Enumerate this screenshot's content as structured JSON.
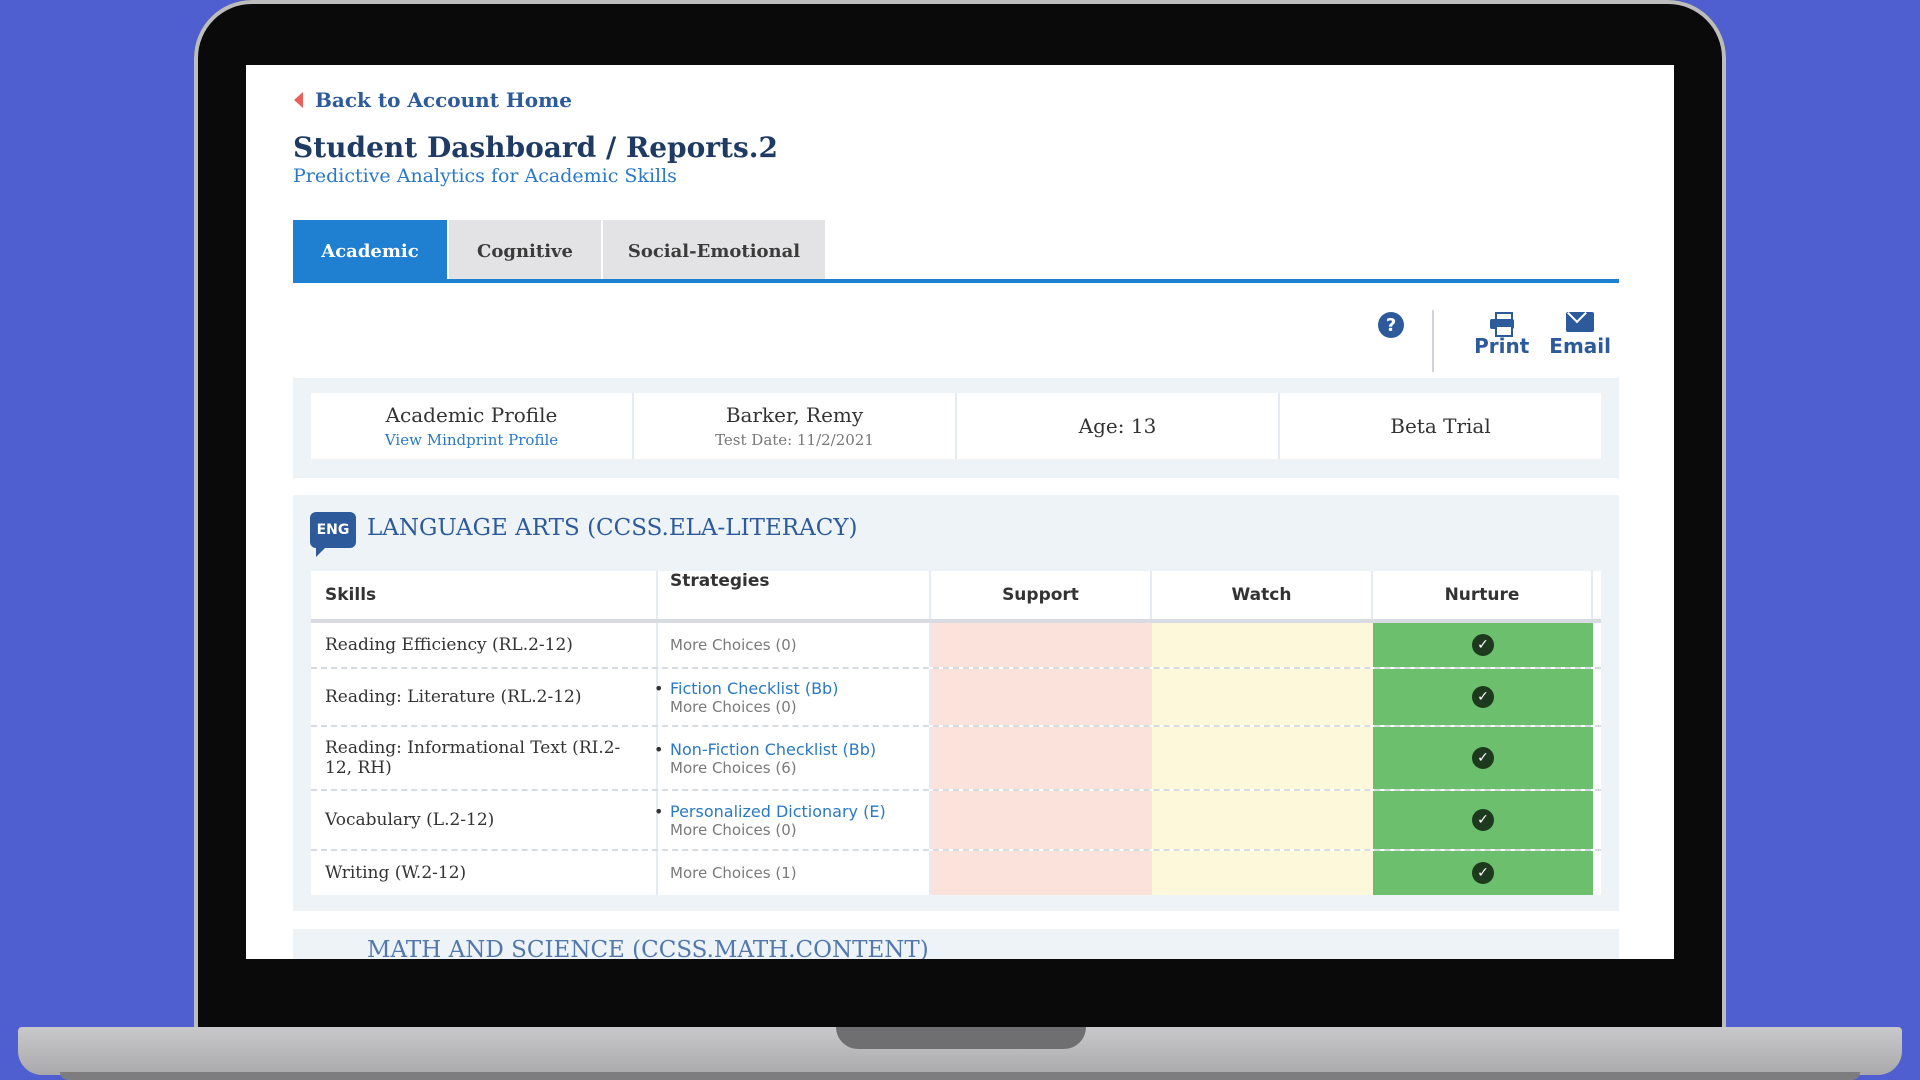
{
  "nav": {
    "back_label": "Back to Account Home"
  },
  "page": {
    "title": "Student Dashboard / Reports.2",
    "subtitle": "Predictive Analytics for Academic Skills"
  },
  "tabs": [
    {
      "label": "Academic",
      "active": true
    },
    {
      "label": "Cognitive",
      "active": false
    },
    {
      "label": "Social-Emotional",
      "active": false
    }
  ],
  "toolbar": {
    "help_icon": "question-circle-icon",
    "print_label": "Print",
    "email_label": "Email"
  },
  "profile": {
    "title": "Academic Profile",
    "link": "View Mindprint Profile",
    "student_name": "Barker, Remy",
    "test_date": "Test Date: 11/2/2021",
    "age": "Age: 13",
    "program": "Beta Trial"
  },
  "section": {
    "badge": "ENG",
    "title": "LANGUAGE ARTS (CCSS.ELA-LITERACY)",
    "next_title": "MATH AND SCIENCE (CCSS.MATH.CONTENT)",
    "columns": [
      "Skills",
      "Strategies",
      "Support",
      "Watch",
      "Nurture"
    ],
    "rows": [
      {
        "skill": "Reading Efficiency (RL.2-12)",
        "primary": "",
        "more": "More Choices (0)",
        "level": "Nurture"
      },
      {
        "skill": "Reading: Literature (RL.2-12)",
        "primary": "Fiction Checklist (Bb)",
        "more": "More Choices (0)",
        "level": "Nurture"
      },
      {
        "skill": "Reading: Informational Text (RI.2-12, RH)",
        "primary": "Non-Fiction Checklist (Bb)",
        "more": "More Choices (6)",
        "level": "Nurture"
      },
      {
        "skill": "Vocabulary (L.2-12)",
        "primary": "Personalized Dictionary (E)",
        "more": "More Choices (0)",
        "level": "Nurture"
      },
      {
        "skill": "Writing (W.2-12)",
        "primary": "",
        "more": "More Choices (1)",
        "level": "Nurture"
      }
    ]
  },
  "colors": {
    "accent": "#1f7fd1",
    "support": "#fbe3dc",
    "watch": "#fdf8d9",
    "nurture": "#6cbf6c"
  }
}
